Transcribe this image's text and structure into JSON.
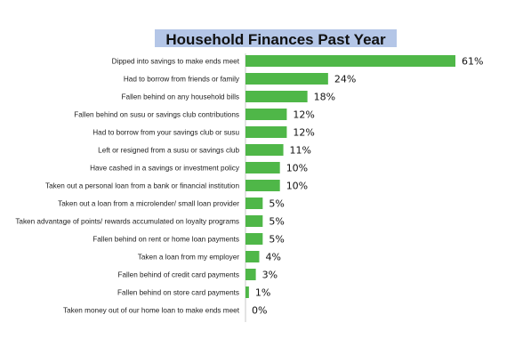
{
  "chart_data": {
    "type": "bar",
    "orientation": "horizontal",
    "title": "Household Finances Past Year",
    "categories": [
      "Dipped into savings to make ends meet",
      "Had to borrow from friends or family",
      "Fallen behind on any household bills",
      "Fallen behind on susu or savings club contributions",
      "Had to borrow from your savings club or susu",
      "Left or resigned from a susu or savings club",
      "Have cashed in a savings or investment policy",
      "Taken out a personal loan from a bank or financial institution",
      "Taken out a loan from a microlender/ small loan provider",
      "Taken advantage of points/ rewards accumulated on loyalty programs",
      "Fallen behind on rent or home loan payments",
      "Taken a loan from my employer",
      "Fallen behind of credit card payments",
      "Fallen behind on store card payments",
      "Taken money out of our home loan to make ends meet"
    ],
    "values": [
      61,
      24,
      18,
      12,
      12,
      11,
      10,
      10,
      5,
      5,
      5,
      4,
      3,
      1,
      0
    ],
    "value_labels": [
      "61%",
      "24%",
      "18%",
      "12%",
      "12%",
      "11%",
      "10%",
      "10%",
      "5%",
      "5%",
      "5%",
      "4%",
      "3%",
      "1%",
      "0%"
    ],
    "unit": "%",
    "xlim": [
      0,
      61
    ],
    "grid": false,
    "legend": "none",
    "colors": {
      "bar": "#4fb748",
      "axis": "#c8c8c8",
      "title_highlight": "#b4c6e7"
    }
  }
}
